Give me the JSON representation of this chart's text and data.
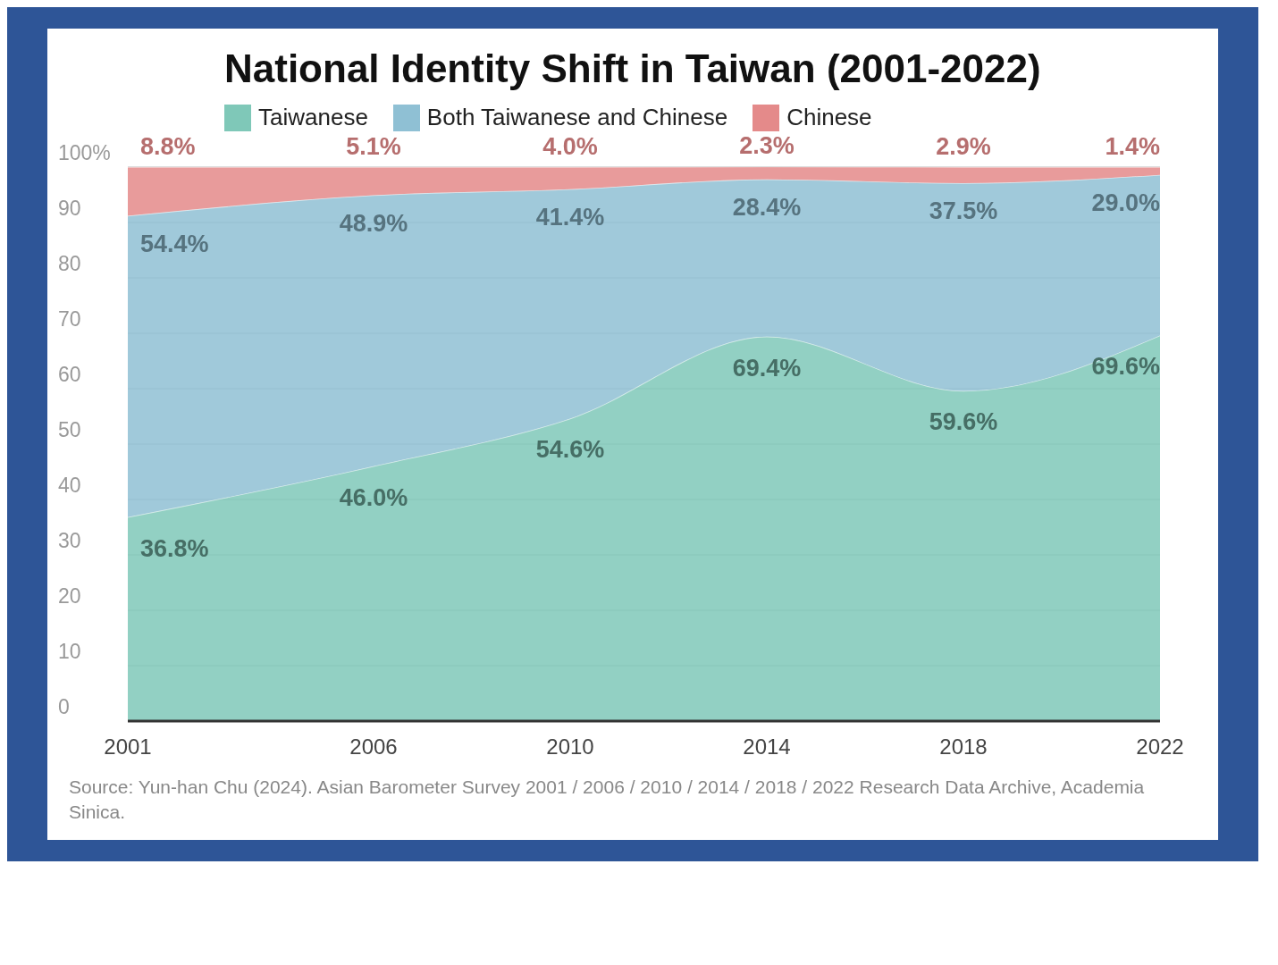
{
  "chart_data": {
    "type": "area",
    "title": "National Identity Shift in Taiwan (2001-2022)",
    "x": [
      2001,
      2006,
      2010,
      2014,
      2018,
      2022
    ],
    "xlim": [
      2001,
      2022
    ],
    "xticks": [
      2001,
      2006,
      2010,
      2014,
      2018,
      2022
    ],
    "ylim": [
      0,
      100
    ],
    "yticks": [
      0,
      10,
      20,
      30,
      40,
      50,
      60,
      70,
      80,
      90,
      {
        "value": 100,
        "label": "100%"
      }
    ],
    "stacked": true,
    "grid": "y",
    "legend": "top left",
    "series": [
      {
        "name": "Taiwanese",
        "color": "#7fc8b8",
        "values": [
          36.8,
          46.0,
          54.6,
          69.4,
          59.6,
          69.6
        ],
        "value_labels": [
          "36.8%",
          "46.0%",
          "54.6%",
          "69.4%",
          "59.6%",
          "69.6%"
        ]
      },
      {
        "name": "Both Taiwanese and Chinese",
        "color": "#8fc0d4",
        "values": [
          54.4,
          48.9,
          41.4,
          28.4,
          37.5,
          29.0
        ],
        "value_labels": [
          "54.4%",
          "48.9%",
          "41.4%",
          "28.4%",
          "37.5%",
          "29.0%"
        ]
      },
      {
        "name": "Chinese",
        "color": "#e48a8a",
        "values": [
          8.8,
          5.1,
          4.0,
          2.3,
          2.9,
          1.4
        ],
        "value_labels": [
          "8.8%",
          "5.1%",
          "4.0%",
          "2.3%",
          "2.9%",
          "1.4%"
        ]
      }
    ],
    "annotations": [
      "Source: Yun-han Chu (2024). Asian Barometer Survey 2001 / 2006 / 2010 / 2014 / 2018 / 2022 Research Data Archive, Academia Sinica."
    ]
  }
}
